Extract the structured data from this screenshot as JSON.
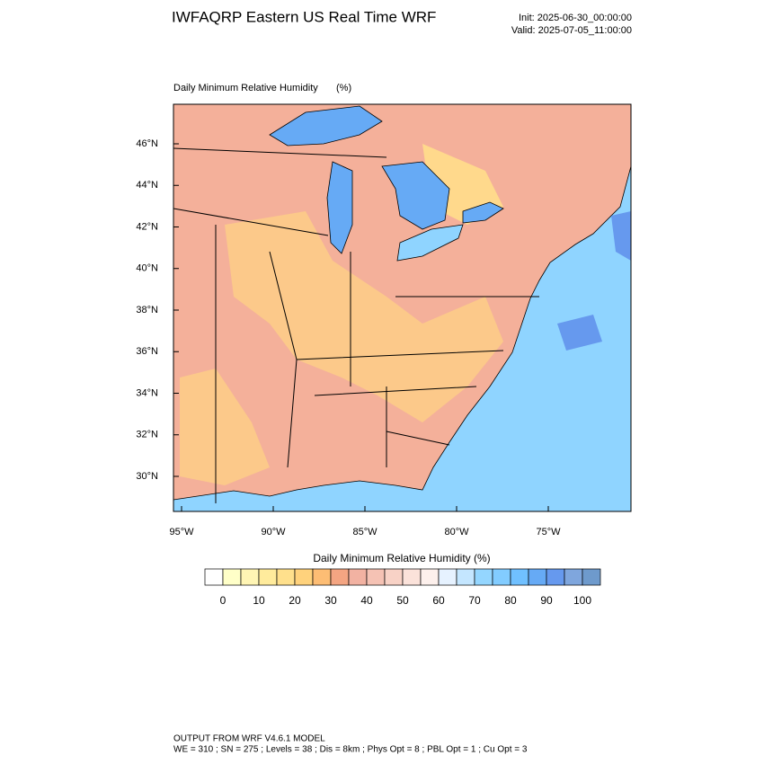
{
  "header": {
    "title": "IWFAQRP Eastern US Real Time WRF",
    "init": "Init: 2025-06-30_00:00:00",
    "valid": "Valid: 2025-07-05_11:00:00"
  },
  "map": {
    "title": "Daily Minimum Relative Humidity",
    "units": "(%)",
    "lat_labels": [
      "46°N",
      "44°N",
      "42°N",
      "40°N",
      "38°N",
      "36°N",
      "34°N",
      "32°N",
      "30°N"
    ],
    "lon_labels": [
      "95°W",
      "90°W",
      "85°W",
      "80°W",
      "75°W"
    ]
  },
  "colorbar": {
    "title": "Daily Minimum Relative Humidity  (%)",
    "ticks": [
      0,
      10,
      20,
      30,
      40,
      50,
      60,
      70,
      80,
      90,
      100
    ],
    "colors": [
      "#ffffff",
      "#ffffc8",
      "#fff5b4",
      "#ffeb9c",
      "#ffe08c",
      "#ffd27c",
      "#fdbd74",
      "#f4a582",
      "#f2b2a2",
      "#f5c2b4",
      "#f8d2c6",
      "#fbe2da",
      "#fdf0ec",
      "#e6f2ff",
      "#c4e6ff",
      "#94d6ff",
      "#82ccff",
      "#70c0ff",
      "#66aaf5",
      "#6699ee",
      "#7fa6dd",
      "#6e9acc"
    ]
  },
  "footer": {
    "line1": "OUTPUT FROM WRF V4.6.1 MODEL",
    "line2": "WE = 310 ; SN = 275 ; Levels = 38 ; Dis = 8km ; Phys Opt = 8 ; PBL Opt = 1 ; Cu Opt = 3"
  }
}
